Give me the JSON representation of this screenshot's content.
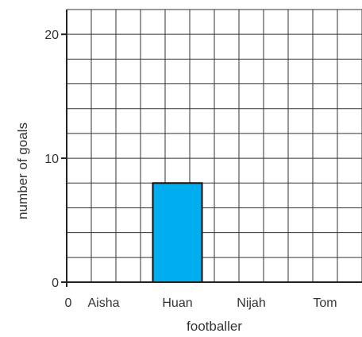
{
  "chart_data": {
    "type": "bar",
    "xlabel": "footballer",
    "ylabel": "number of goals",
    "x_origin_label": "0",
    "categories": [
      "Aisha",
      "Huan",
      "Nijah",
      "Tom"
    ],
    "values": [
      null,
      8,
      null,
      null
    ],
    "ylim": [
      0,
      22
    ],
    "y_ticks": [
      0,
      10,
      20
    ],
    "y_tick_labels": [
      "0",
      "10",
      "20"
    ],
    "y_minor_step": 2,
    "grid": true,
    "colors": {
      "bar": "#00AEEF",
      "bar_edge": "#111111",
      "grid": "#333333",
      "axis": "#222222"
    }
  }
}
